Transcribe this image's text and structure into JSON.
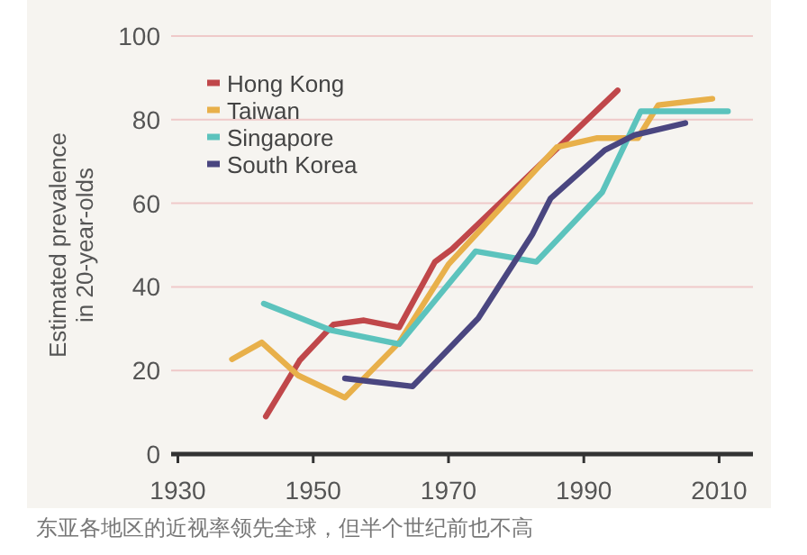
{
  "chart_data": {
    "type": "line",
    "ylabel": "Estimated prevalence\nin 20-year-olds",
    "xlim": [
      1929,
      2015
    ],
    "ylim": [
      0,
      100
    ],
    "xticks": [
      1930,
      1950,
      1970,
      1990,
      2010
    ],
    "yticks": [
      0,
      20,
      40,
      60,
      80,
      100
    ],
    "grid": "y",
    "legend": "top left",
    "line_style": "solid",
    "marker": "none",
    "series": [
      {
        "name": "Hong Kong",
        "color": "#c0474a",
        "x": [
          1943,
          1948,
          1953,
          1957.5,
          1962.7,
          1968,
          1970.5,
          1995
        ],
        "values": [
          9,
          22.4,
          31,
          32,
          30.3,
          46,
          49,
          87
        ]
      },
      {
        "name": "Taiwan",
        "color": "#e8b04a",
        "x": [
          1938,
          1942.4,
          1947.8,
          1954.7,
          1962.7,
          1970,
          1986,
          1992,
          1998,
          2001,
          2009
        ],
        "values": [
          22.7,
          26.7,
          18.8,
          13.5,
          26.7,
          45.4,
          73.4,
          75.6,
          75.6,
          83.5,
          85
        ]
      },
      {
        "name": "Singapore",
        "color": "#5cc3bd",
        "x": [
          1942.7,
          1952.7,
          1962.7,
          1974,
          1983,
          1992.7,
          1998.4,
          2011.3
        ],
        "values": [
          36,
          29.6,
          26.3,
          48.5,
          46,
          62.6,
          82,
          82
        ]
      },
      {
        "name": "South Korea",
        "color": "#4a4680",
        "x": [
          1954.7,
          1964.7,
          1974.4,
          1982.4,
          1985.1,
          1993.1,
          1997.5,
          2005
        ],
        "values": [
          18.1,
          16.2,
          32.5,
          52.6,
          61.2,
          72.7,
          76.3,
          79.2
        ]
      }
    ],
    "annotations": [
      "东亚各地区的近视率领先全球，但半个世纪前也不高"
    ]
  }
}
